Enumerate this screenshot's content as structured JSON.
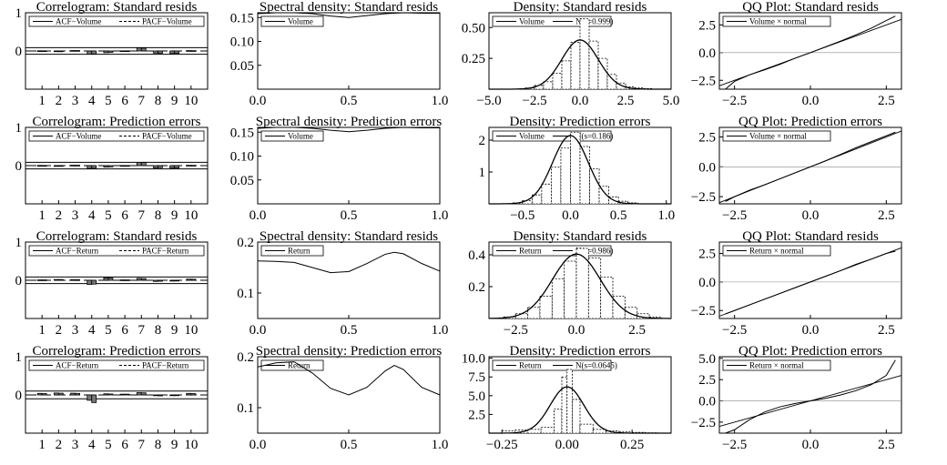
{
  "chart_data": [
    {
      "type": "bar",
      "title": "Correlogram: Standard resids",
      "legend": [
        "ACF−Volume",
        "PACF−Volume"
      ],
      "x": [
        1,
        2,
        3,
        4,
        5,
        6,
        7,
        8,
        9,
        10
      ],
      "ylim": [
        -1,
        1
      ],
      "band": 0.086,
      "acf": [
        0.005,
        -0.004,
        0.012,
        -0.085,
        -0.045,
        0.003,
        0.08,
        -0.055,
        -0.07,
        0.01
      ],
      "pacf": [
        0.004,
        -0.005,
        0.011,
        -0.08,
        -0.04,
        0.004,
        0.075,
        -0.06,
        -0.065,
        0.008
      ],
      "yticks": [
        {
          "v": 1,
          "t": "1"
        },
        {
          "v": 0,
          "t": "0"
        }
      ],
      "xticks": [
        {
          "v": 1,
          "t": "1"
        },
        {
          "v": 2,
          "t": "2"
        },
        {
          "v": 3,
          "t": "3"
        },
        {
          "v": 4,
          "t": "4"
        },
        {
          "v": 5,
          "t": "5"
        },
        {
          "v": 6,
          "t": "6"
        },
        {
          "v": 7,
          "t": "7"
        },
        {
          "v": 8,
          "t": "8"
        },
        {
          "v": 9,
          "t": "9"
        },
        {
          "v": 10,
          "t": "10"
        }
      ]
    },
    {
      "type": "line",
      "title": "Spectral density: Standard resids",
      "legend": [
        "Volume"
      ],
      "xlim": [
        0,
        1
      ],
      "ylim": [
        0,
        0.16
      ],
      "x": [
        0,
        0.1,
        0.2,
        0.3,
        0.4,
        0.5,
        0.6,
        0.7,
        0.8,
        0.9,
        1.0
      ],
      "y": [
        0.158,
        0.16,
        0.16,
        0.158,
        0.153,
        0.15,
        0.154,
        0.158,
        0.16,
        0.159,
        0.159
      ],
      "yticks": [
        {
          "v": 0.05,
          "t": "0.05"
        },
        {
          "v": 0.1,
          "t": "0.10"
        },
        {
          "v": 0.15,
          "t": "0.15"
        }
      ],
      "xticks": [
        {
          "v": 0,
          "t": "0.0"
        },
        {
          "v": 0.5,
          "t": "0.5"
        },
        {
          "v": 1,
          "t": "1.0"
        }
      ]
    },
    {
      "type": "histogram",
      "title": "Density: Standard resids",
      "legend": [
        "Volume",
        "N(s=0.999)"
      ],
      "xlim": [
        -5,
        5
      ],
      "ylim": [
        0,
        0.62
      ],
      "sigma": 0.999,
      "bins": [
        -3,
        -2.5,
        -2,
        -1.5,
        -1,
        -0.5,
        0,
        0.5,
        1,
        1.5,
        2,
        2.5,
        3,
        3.5,
        4
      ],
      "heights": [
        0.01,
        0.03,
        0.06,
        0.13,
        0.23,
        0.38,
        0.57,
        0.39,
        0.25,
        0.12,
        0.05,
        0.02,
        0.01,
        0.005
      ],
      "yticks": [
        {
          "v": 0.25,
          "t": "0.25"
        },
        {
          "v": 0.5,
          "t": "0.50"
        }
      ],
      "xticks": [
        {
          "v": -5,
          "t": "−5.0"
        },
        {
          "v": -2.5,
          "t": "−2.5"
        },
        {
          "v": 0,
          "t": "0.0"
        },
        {
          "v": 2.5,
          "t": "2.5"
        },
        {
          "v": 5,
          "t": "5.0"
        }
      ]
    },
    {
      "type": "scatter",
      "title": "QQ Plot: Standard resids",
      "legend": [
        "Volume × normal"
      ],
      "xlim": [
        -3,
        3
      ],
      "ylim": [
        -3.3,
        3.6
      ],
      "x": [
        -2.8,
        -2.5,
        -2.0,
        -1.5,
        -1.0,
        -0.5,
        0,
        0.5,
        1.0,
        1.5,
        2.0,
        2.5,
        2.8
      ],
      "y": [
        -3.3,
        -2.6,
        -2.0,
        -1.55,
        -1.05,
        -0.5,
        0,
        0.52,
        1.05,
        1.6,
        2.2,
        2.9,
        3.3
      ],
      "yticks": [
        {
          "v": -2.5,
          "t": "−2.5"
        },
        {
          "v": 0,
          "t": "0.0"
        },
        {
          "v": 2.5,
          "t": "2.5"
        }
      ],
      "xticks": [
        {
          "v": -2.5,
          "t": "−2.5"
        },
        {
          "v": 0,
          "t": "0.0"
        },
        {
          "v": 2.5,
          "t": "2.5"
        }
      ]
    },
    {
      "type": "bar",
      "title": "Correlogram: Prediction errors",
      "legend": [
        "ACF−Volume",
        "PACF−Volume"
      ],
      "x": [
        1,
        2,
        3,
        4,
        5,
        6,
        7,
        8,
        9,
        10
      ],
      "ylim": [
        -1,
        1
      ],
      "band": 0.086,
      "acf": [
        0.005,
        -0.004,
        0.01,
        -0.075,
        -0.04,
        0.003,
        0.085,
        -0.06,
        -0.065,
        0.008
      ],
      "pacf": [
        0.004,
        -0.004,
        0.009,
        -0.07,
        -0.035,
        0.002,
        0.08,
        -0.055,
        -0.06,
        0.007
      ],
      "yticks": [
        {
          "v": 1,
          "t": "1"
        },
        {
          "v": 0,
          "t": "0"
        }
      ],
      "xticks": [
        {
          "v": 1,
          "t": "1"
        },
        {
          "v": 2,
          "t": "2"
        },
        {
          "v": 3,
          "t": "3"
        },
        {
          "v": 4,
          "t": "4"
        },
        {
          "v": 5,
          "t": "5"
        },
        {
          "v": 6,
          "t": "6"
        },
        {
          "v": 7,
          "t": "7"
        },
        {
          "v": 8,
          "t": "8"
        },
        {
          "v": 9,
          "t": "9"
        },
        {
          "v": 10,
          "t": "10"
        }
      ]
    },
    {
      "type": "line",
      "title": "Spectral density: Prediction errors",
      "legend": [
        "Volume"
      ],
      "xlim": [
        0,
        1
      ],
      "ylim": [
        0,
        0.16
      ],
      "x": [
        0,
        0.1,
        0.2,
        0.3,
        0.4,
        0.5,
        0.6,
        0.7,
        0.8,
        0.9,
        1.0
      ],
      "y": [
        0.158,
        0.16,
        0.16,
        0.158,
        0.154,
        0.151,
        0.154,
        0.158,
        0.16,
        0.159,
        0.159
      ],
      "yticks": [
        {
          "v": 0.05,
          "t": "0.05"
        },
        {
          "v": 0.1,
          "t": "0.10"
        },
        {
          "v": 0.15,
          "t": "0.15"
        }
      ],
      "xticks": [
        {
          "v": 0,
          "t": "0.0"
        },
        {
          "v": 0.5,
          "t": "0.5"
        },
        {
          "v": 1,
          "t": "1.0"
        }
      ]
    },
    {
      "type": "histogram",
      "title": "Density: Prediction errors",
      "legend": [
        "Volume",
        "N(s=0.186)"
      ],
      "xlim": [
        -0.85,
        1.05
      ],
      "ylim": [
        0,
        2.4
      ],
      "sigma": 0.186,
      "bins": [
        -0.6,
        -0.5,
        -0.4,
        -0.3,
        -0.2,
        -0.1,
        0,
        0.1,
        0.2,
        0.3,
        0.4,
        0.5,
        0.6,
        0.7
      ],
      "heights": [
        0.03,
        0.1,
        0.28,
        0.62,
        1.15,
        1.75,
        2.25,
        1.8,
        1.1,
        0.55,
        0.22,
        0.08,
        0.03
      ],
      "yticks": [
        {
          "v": 1,
          "t": "1"
        },
        {
          "v": 2,
          "t": "2"
        }
      ],
      "xticks": [
        {
          "v": -0.5,
          "t": "−0.5"
        },
        {
          "v": 0,
          "t": "0.0"
        },
        {
          "v": 0.5,
          "t": "0.5"
        },
        {
          "v": 1,
          "t": "1.0"
        }
      ]
    },
    {
      "type": "scatter",
      "title": "QQ Plot: Prediction errors",
      "legend": [
        "Volume × normal"
      ],
      "xlim": [
        -3,
        3
      ],
      "ylim": [
        -3.1,
        3.3
      ],
      "x": [
        -2.8,
        -2.5,
        -2.0,
        -1.5,
        -1.0,
        -0.5,
        0,
        0.5,
        1.0,
        1.5,
        2.0,
        2.5,
        2.8
      ],
      "y": [
        -2.9,
        -2.5,
        -1.95,
        -1.5,
        -1.0,
        -0.5,
        0,
        0.5,
        1.05,
        1.6,
        2.1,
        2.6,
        2.9
      ],
      "yticks": [
        {
          "v": -2.5,
          "t": "−2.5"
        },
        {
          "v": 0,
          "t": "0.0"
        },
        {
          "v": 2.5,
          "t": "2.5"
        }
      ],
      "xticks": [
        {
          "v": -2.5,
          "t": "−2.5"
        },
        {
          "v": 0,
          "t": "0.0"
        },
        {
          "v": 2.5,
          "t": "2.5"
        }
      ]
    },
    {
      "type": "bar",
      "title": "Correlogram: Standard resids",
      "legend": [
        "ACF−Return",
        "PACF−Return"
      ],
      "x": [
        1,
        2,
        3,
        4,
        5,
        6,
        7,
        8,
        9,
        10
      ],
      "ylim": [
        -1,
        1
      ],
      "band": 0.086,
      "acf": [
        0.01,
        0.02,
        0.015,
        -0.11,
        0.065,
        0.01,
        0.05,
        -0.03,
        -0.02,
        0.03
      ],
      "pacf": [
        0.01,
        0.02,
        0.014,
        -0.1,
        0.06,
        0.01,
        0.045,
        -0.025,
        -0.018,
        0.028
      ],
      "yticks": [
        {
          "v": 1,
          "t": "1"
        },
        {
          "v": 0,
          "t": "0"
        }
      ],
      "xticks": [
        {
          "v": 1,
          "t": "1"
        },
        {
          "v": 2,
          "t": "2"
        },
        {
          "v": 3,
          "t": "3"
        },
        {
          "v": 4,
          "t": "4"
        },
        {
          "v": 5,
          "t": "5"
        },
        {
          "v": 6,
          "t": "6"
        },
        {
          "v": 7,
          "t": "7"
        },
        {
          "v": 8,
          "t": "8"
        },
        {
          "v": 9,
          "t": "9"
        },
        {
          "v": 10,
          "t": "10"
        }
      ]
    },
    {
      "type": "line",
      "title": "Spectral density: Standard resids",
      "legend": [
        "Return"
      ],
      "xlim": [
        0,
        1
      ],
      "ylim": [
        0.05,
        0.2
      ],
      "x": [
        0,
        0.1,
        0.2,
        0.3,
        0.4,
        0.5,
        0.6,
        0.7,
        0.75,
        0.8,
        0.9,
        1.0
      ],
      "y": [
        0.163,
        0.162,
        0.16,
        0.15,
        0.14,
        0.142,
        0.158,
        0.176,
        0.18,
        0.177,
        0.158,
        0.143
      ],
      "yticks": [
        {
          "v": 0.1,
          "t": "0.1"
        },
        {
          "v": 0.2,
          "t": "0.2"
        }
      ],
      "xticks": [
        {
          "v": 0,
          "t": "0.0"
        },
        {
          "v": 0.5,
          "t": "0.5"
        },
        {
          "v": 1,
          "t": "1.0"
        }
      ]
    },
    {
      "type": "histogram",
      "title": "Density: Standard resids",
      "legend": [
        "Return",
        "N(s=0.986)"
      ],
      "xlim": [
        -3.6,
        3.9
      ],
      "ylim": [
        0,
        0.48
      ],
      "sigma": 0.986,
      "bins": [
        -3,
        -2.5,
        -2,
        -1.5,
        -1,
        -0.5,
        0,
        0.5,
        1,
        1.5,
        2,
        2.5,
        3,
        3.5
      ],
      "heights": [
        0.01,
        0.03,
        0.07,
        0.14,
        0.25,
        0.36,
        0.44,
        0.38,
        0.26,
        0.14,
        0.07,
        0.03,
        0.01
      ],
      "yticks": [
        {
          "v": 0.2,
          "t": "0.2"
        },
        {
          "v": 0.4,
          "t": "0.4"
        }
      ],
      "xticks": [
        {
          "v": -2.5,
          "t": "−2.5"
        },
        {
          "v": 0,
          "t": "0.0"
        },
        {
          "v": 2.5,
          "t": "2.5"
        }
      ]
    },
    {
      "type": "scatter",
      "title": "QQ Plot: Standard resids",
      "legend": [
        "Return × normal"
      ],
      "xlim": [
        -3,
        3
      ],
      "ylim": [
        -3.2,
        3.5
      ],
      "x": [
        -2.8,
        -2.5,
        -2.0,
        -1.5,
        -1.0,
        -0.5,
        0,
        0.5,
        1.0,
        1.5,
        2.0,
        2.5,
        2.8
      ],
      "y": [
        -2.8,
        -2.5,
        -2.0,
        -1.5,
        -1.0,
        -0.5,
        0,
        0.5,
        1.0,
        1.55,
        2.0,
        2.5,
        2.7
      ],
      "yticks": [
        {
          "v": -2.5,
          "t": "−2.5"
        },
        {
          "v": 0,
          "t": "0.0"
        },
        {
          "v": 2.5,
          "t": "2.5"
        }
      ],
      "xticks": [
        {
          "v": -2.5,
          "t": "−2.5"
        },
        {
          "v": 0,
          "t": "0.0"
        },
        {
          "v": 2.5,
          "t": "2.5"
        }
      ]
    },
    {
      "type": "bar",
      "title": "Correlogram: Prediction errors",
      "legend": [
        "ACF−Return",
        "PACF−Return"
      ],
      "x": [
        1,
        2,
        3,
        4,
        5,
        6,
        7,
        8,
        9,
        10
      ],
      "ylim": [
        -1,
        1
      ],
      "band": 0.1,
      "acf": [
        0.04,
        0.05,
        0.045,
        -0.14,
        0.03,
        0.02,
        0.06,
        -0.02,
        -0.01,
        0.04
      ],
      "pacf": [
        0.035,
        0.045,
        0.04,
        -0.2,
        0.025,
        0.02,
        0.055,
        -0.025,
        -0.015,
        0.035
      ],
      "yticks": [
        {
          "v": 1,
          "t": "1"
        },
        {
          "v": 0,
          "t": "0"
        }
      ],
      "xticks": [
        {
          "v": 1,
          "t": "1"
        },
        {
          "v": 2,
          "t": "2"
        },
        {
          "v": 3,
          "t": "3"
        },
        {
          "v": 4,
          "t": "4"
        },
        {
          "v": 5,
          "t": "5"
        },
        {
          "v": 6,
          "t": "6"
        },
        {
          "v": 7,
          "t": "7"
        },
        {
          "v": 8,
          "t": "8"
        },
        {
          "v": 9,
          "t": "9"
        },
        {
          "v": 10,
          "t": "10"
        }
      ]
    },
    {
      "type": "line",
      "title": "Spectral density: Prediction errors",
      "legend": [
        "Return"
      ],
      "xlim": [
        0,
        1
      ],
      "ylim": [
        0.05,
        0.2
      ],
      "x": [
        0,
        0.1,
        0.2,
        0.3,
        0.4,
        0.5,
        0.6,
        0.7,
        0.75,
        0.8,
        0.9,
        1.0
      ],
      "y": [
        0.18,
        0.188,
        0.19,
        0.168,
        0.138,
        0.125,
        0.14,
        0.172,
        0.183,
        0.175,
        0.14,
        0.125
      ],
      "yticks": [
        {
          "v": 0.1,
          "t": "0.1"
        },
        {
          "v": 0.2,
          "t": "0.2"
        }
      ],
      "xticks": [
        {
          "v": 0,
          "t": "0.0"
        },
        {
          "v": 0.5,
          "t": "0.5"
        },
        {
          "v": 1,
          "t": "1.0"
        }
      ]
    },
    {
      "type": "histogram",
      "title": "Density: Prediction errors",
      "legend": [
        "Return",
        "N(s=0.0645)"
      ],
      "xlim": [
        -0.3,
        0.4
      ],
      "ylim": [
        0,
        10.2
      ],
      "sigma": 0.0645,
      "bins": [
        -0.25,
        -0.2,
        -0.15,
        -0.1,
        -0.05,
        -0.02,
        0.0,
        0.02,
        0.05,
        0.1,
        0.15,
        0.2,
        0.25,
        0.3,
        0.35
      ],
      "heights": [
        0.3,
        0.4,
        0.5,
        0.8,
        3.2,
        7.5,
        8.5,
        4.5,
        1.2,
        0.5,
        0.3,
        0.2,
        0.1,
        0.05
      ],
      "yticks": [
        {
          "v": 2.5,
          "t": "2.5"
        },
        {
          "v": 5,
          "t": "5.0"
        },
        {
          "v": 7.5,
          "t": "7.5"
        },
        {
          "v": 10,
          "t": "10.0"
        }
      ],
      "xticks": [
        {
          "v": -0.25,
          "t": "−0.25"
        },
        {
          "v": 0,
          "t": "0.00"
        },
        {
          "v": 0.25,
          "t": "0.25"
        }
      ]
    },
    {
      "type": "scatter",
      "title": "QQ Plot: Prediction errors",
      "legend": [
        "Return × normal"
      ],
      "xlim": [
        -3,
        3
      ],
      "ylim": [
        -3.8,
        5.2
      ],
      "x": [
        -2.8,
        -2.5,
        -2.0,
        -1.5,
        -1.0,
        -0.5,
        0,
        0.5,
        1.0,
        1.5,
        2.0,
        2.5,
        2.8
      ],
      "y": [
        -3.8,
        -3.4,
        -2.2,
        -1.3,
        -0.7,
        -0.3,
        0,
        0.3,
        0.7,
        1.2,
        1.9,
        3.0,
        4.8
      ],
      "yticks": [
        {
          "v": -2.5,
          "t": "−2.5"
        },
        {
          "v": 0,
          "t": "0.0"
        },
        {
          "v": 2.5,
          "t": "2.5"
        },
        {
          "v": 5,
          "t": "5.0"
        }
      ],
      "xticks": [
        {
          "v": -2.5,
          "t": "−2.5"
        },
        {
          "v": 0,
          "t": "0.0"
        },
        {
          "v": 2.5,
          "t": "2.5"
        }
      ]
    }
  ]
}
